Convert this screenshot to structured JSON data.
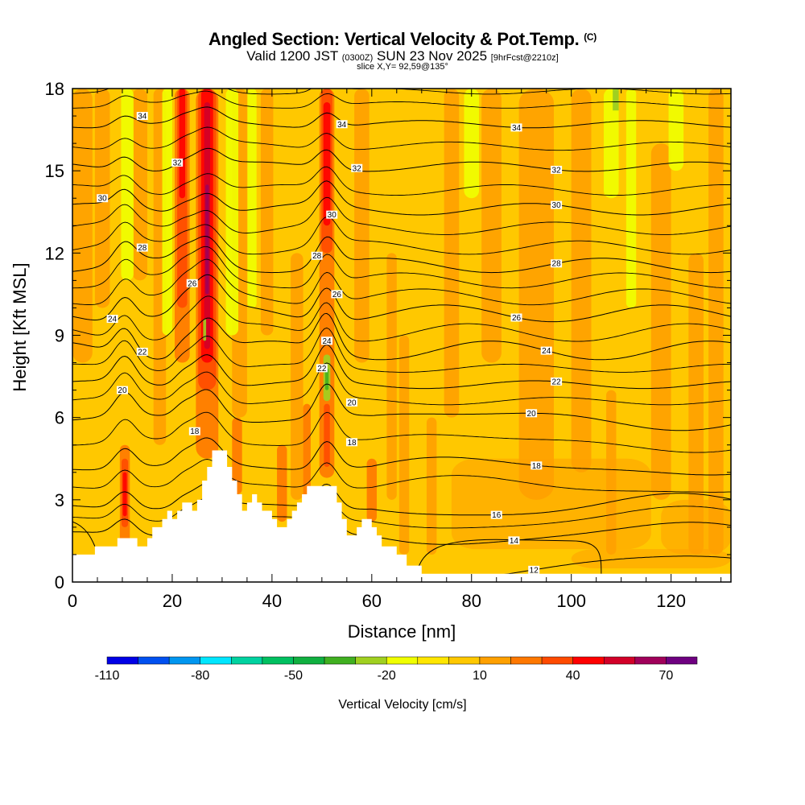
{
  "header": {
    "title": "Angled Section: Vertical Velocity & Pot.Temp.",
    "title_units": "(C)",
    "valid_prefix": "Valid 1200 JST",
    "valid_utc": "(0300Z)",
    "valid_date": "SUN 23 Nov 2025",
    "valid_fcst": "[9hrFcst@2210z]",
    "slice": "slice X,Y= 92,59@135°"
  },
  "chart_data": {
    "type": "heatmap",
    "title": "Angled Section: Vertical Velocity & Pot.Temp. (C)",
    "xlabel": "Distance [nm]",
    "ylabel": "Height [Kft MSL]",
    "xlim": [
      0,
      132
    ],
    "ylim": [
      0,
      18
    ],
    "x_ticks": [
      "0",
      "20",
      "40",
      "60",
      "80",
      "100",
      "120"
    ],
    "y_ticks": [
      "0",
      "3",
      "6",
      "9",
      "12",
      "15",
      "18"
    ],
    "colorbar": {
      "label": "Vertical Velocity [cm/s]",
      "tick_labels": [
        "-110",
        "-80",
        "-50",
        "-20",
        "10",
        "40",
        "70"
      ],
      "levels": [
        -110,
        -100,
        -90,
        -80,
        -70,
        -60,
        -50,
        -40,
        -30,
        -20,
        -10,
        0,
        10,
        20,
        30,
        40,
        50,
        60,
        70,
        80
      ],
      "colors": [
        "#0000e6",
        "#0050f0",
        "#0096f0",
        "#00e6ff",
        "#00d2a0",
        "#00c060",
        "#10b040",
        "#40b020",
        "#a0d020",
        "#f0ff00",
        "#ffe600",
        "#ffc800",
        "#ffa000",
        "#ff7800",
        "#ff4a00",
        "#ff0000",
        "#d20028",
        "#a0005a",
        "#6e0080"
      ]
    },
    "updraft_columns_nm": [
      10.5,
      22,
      27,
      51
    ],
    "downdraft_column_nm": 51,
    "theta_contours": [
      {
        "value": 12,
        "label_x": 92.5,
        "base": 0.6
      },
      {
        "value": 14,
        "label_x": 88.5,
        "base": 1.75
      },
      {
        "value": 16,
        "label_x": 85,
        "base": 2.75
      },
      {
        "value": 18,
        "label_x": 93,
        "base": 4.2,
        "label2_x": 56,
        "label2_y": 5.1,
        "label3_x": 24.5,
        "label3_y": 5.5
      },
      {
        "value": 20,
        "label_x": 92,
        "base": 5.95,
        "label2_x": 56,
        "label2_y": 6.55,
        "label3_x": 10,
        "label3_y": 7.0
      },
      {
        "value": 22,
        "label_x": 97,
        "base": 7.2,
        "label2_x": 50,
        "label2_y": 7.8,
        "label3_x": 14,
        "label3_y": 8.4
      },
      {
        "value": 24,
        "label_x": 95,
        "base": 8.45,
        "label2_x": 51,
        "label2_y": 8.8,
        "label3_x": 8,
        "label3_y": 9.6
      },
      {
        "value": 26,
        "label_x": 89,
        "base": 9.8,
        "label2_x": 53,
        "label2_y": 10.5,
        "label3_x": 24,
        "label3_y": 10.9
      },
      {
        "value": 28,
        "label_x": 97,
        "base": 11.55,
        "label2_x": 49,
        "label2_y": 11.9,
        "label3_x": 14,
        "label3_y": 12.2
      },
      {
        "value": 30,
        "label_x": 97,
        "base": 13.6,
        "label2_x": 52,
        "label2_y": 13.4,
        "label3_x": 6,
        "label3_y": 14.0
      },
      {
        "value": 32,
        "label_x": 97,
        "base": 15.15,
        "label2_x": 57,
        "label2_y": 15.1,
        "label3_x": 21,
        "label3_y": 15.3
      },
      {
        "value": 34,
        "label_x": 89,
        "base": 16.7,
        "label2_x": 54,
        "label2_y": 16.7,
        "label3_x": 14,
        "label3_y": 17.0
      }
    ],
    "terrain_profile": [
      [
        0,
        1.0
      ],
      [
        4.5,
        1.0
      ],
      [
        4.5,
        1.3
      ],
      [
        9,
        1.3
      ],
      [
        9,
        1.6
      ],
      [
        13,
        1.6
      ],
      [
        13,
        1.3
      ],
      [
        15,
        1.3
      ],
      [
        15,
        1.6
      ],
      [
        16,
        1.6
      ],
      [
        16,
        2.0
      ],
      [
        18,
        2.0
      ],
      [
        18,
        2.3
      ],
      [
        19,
        2.3
      ],
      [
        19,
        2.6
      ],
      [
        20,
        2.6
      ],
      [
        20,
        2.3
      ],
      [
        21,
        2.3
      ],
      [
        21,
        2.6
      ],
      [
        22,
        2.6
      ],
      [
        22,
        2.9
      ],
      [
        24,
        2.9
      ],
      [
        24,
        2.6
      ],
      [
        25,
        2.6
      ],
      [
        25,
        3.0
      ],
      [
        26,
        3.0
      ],
      [
        26,
        3.7
      ],
      [
        27,
        3.7
      ],
      [
        27,
        4.2
      ],
      [
        28,
        4.2
      ],
      [
        28,
        4.8
      ],
      [
        31,
        4.8
      ],
      [
        31,
        4.2
      ],
      [
        32,
        4.2
      ],
      [
        32,
        3.7
      ],
      [
        33,
        3.7
      ],
      [
        33,
        3.2
      ],
      [
        34,
        3.2
      ],
      [
        34,
        2.6
      ],
      [
        35,
        2.6
      ],
      [
        35,
        2.9
      ],
      [
        36,
        2.9
      ],
      [
        36,
        3.2
      ],
      [
        37,
        3.2
      ],
      [
        37,
        2.9
      ],
      [
        38,
        2.9
      ],
      [
        38,
        2.6
      ],
      [
        40,
        2.6
      ],
      [
        40,
        2.3
      ],
      [
        41,
        2.3
      ],
      [
        41,
        2.0
      ],
      [
        43,
        2.0
      ],
      [
        43,
        2.3
      ],
      [
        44,
        2.3
      ],
      [
        44,
        2.6
      ],
      [
        45,
        2.6
      ],
      [
        45,
        2.9
      ],
      [
        46,
        2.9
      ],
      [
        46,
        3.2
      ],
      [
        47,
        3.2
      ],
      [
        47,
        3.5
      ],
      [
        48,
        3.5
      ],
      [
        48,
        3.5
      ],
      [
        53,
        3.5
      ],
      [
        53,
        2.9
      ],
      [
        54,
        2.9
      ],
      [
        54,
        2.3
      ],
      [
        55,
        2.3
      ],
      [
        55,
        1.7
      ],
      [
        57,
        1.7
      ],
      [
        57,
        2.0
      ],
      [
        58,
        2.0
      ],
      [
        58,
        2.3
      ],
      [
        60,
        2.3
      ],
      [
        60,
        2.0
      ],
      [
        61,
        2.0
      ],
      [
        61,
        1.7
      ],
      [
        62,
        1.7
      ],
      [
        62,
        1.3
      ],
      [
        65,
        1.3
      ],
      [
        65,
        1.0
      ],
      [
        67,
        1.0
      ],
      [
        67,
        0.6
      ],
      [
        70,
        0.6
      ],
      [
        70,
        0.3
      ],
      [
        132,
        0.3
      ],
      [
        132,
        0
      ]
    ]
  }
}
